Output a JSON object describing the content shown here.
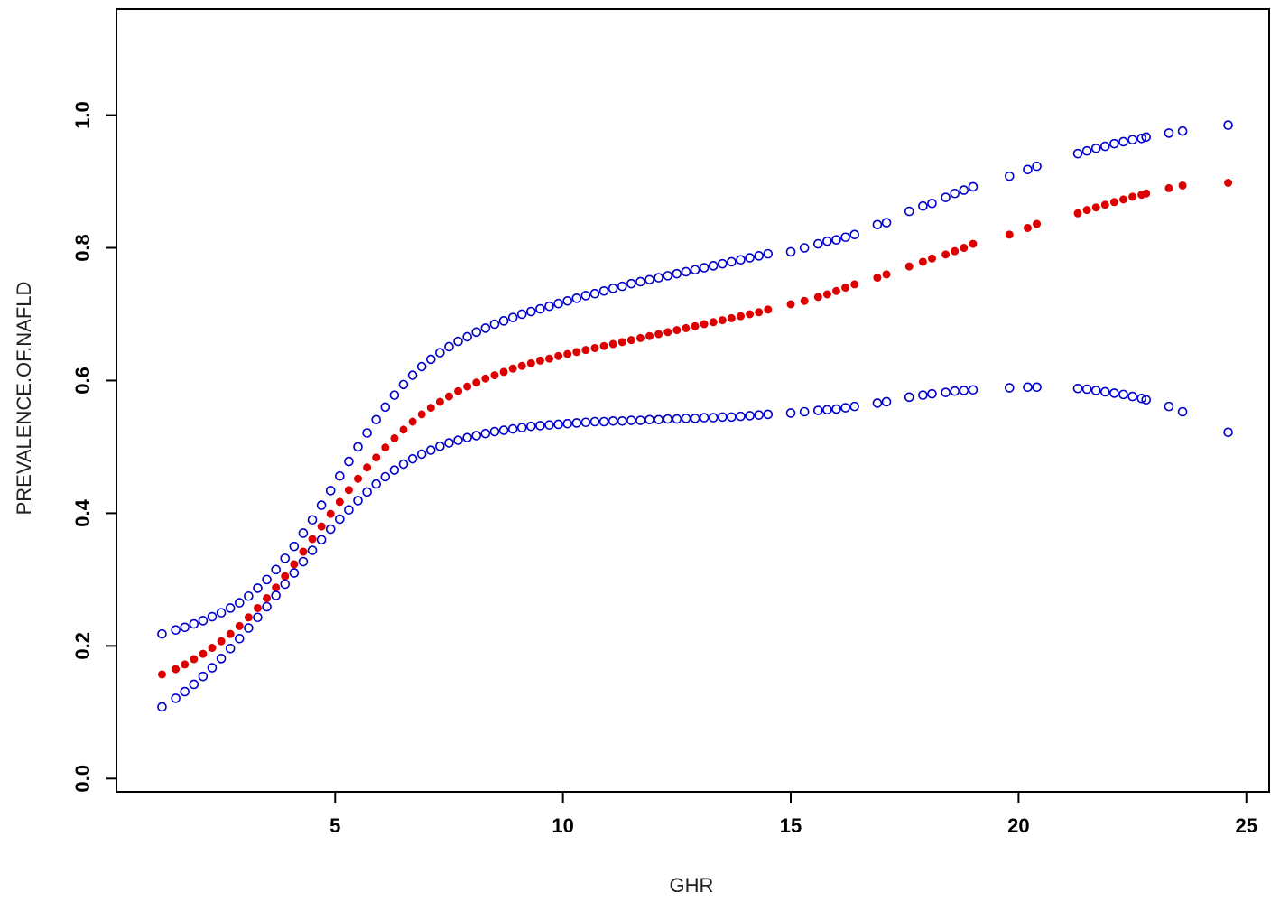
{
  "chart_data": {
    "type": "scatter",
    "title": "",
    "xlabel": "GHR",
    "ylabel": "PREVALENCE.OF.NAFLD",
    "xlim": [
      0.2,
      25.5
    ],
    "ylim": [
      -0.02,
      1.16
    ],
    "x_ticks": [
      5,
      10,
      15,
      20,
      25
    ],
    "x_tick_labels": [
      "5",
      "10",
      "15",
      "20",
      "25"
    ],
    "y_ticks": [
      0.0,
      0.2,
      0.4,
      0.6,
      0.8,
      1.0
    ],
    "y_tick_labels": [
      "0.0",
      "0.2",
      "0.4",
      "0.6",
      "0.8",
      "1.0"
    ],
    "grid": false,
    "legend": "none",
    "series": [
      {
        "role": "upper",
        "marker": "open-circle",
        "color": "#0000cc",
        "x": [
          1.2,
          1.5,
          1.7,
          1.9,
          2.1,
          2.3,
          2.5,
          2.7,
          2.9,
          3.1,
          3.3,
          3.5,
          3.7,
          3.9,
          4.1,
          4.3,
          4.5,
          4.7,
          4.9,
          5.1,
          5.3,
          5.5,
          5.7,
          5.9,
          6.1,
          6.3,
          6.5,
          6.7,
          6.9,
          7.1,
          7.3,
          7.5,
          7.7,
          7.9,
          8.1,
          8.3,
          8.5,
          8.7,
          8.9,
          9.1,
          9.3,
          9.5,
          9.7,
          9.9,
          10.1,
          10.3,
          10.5,
          10.7,
          10.9,
          11.1,
          11.3,
          11.5,
          11.7,
          11.9,
          12.1,
          12.3,
          12.5,
          12.7,
          12.9,
          13.1,
          13.3,
          13.5,
          13.7,
          13.9,
          14.1,
          14.3,
          14.5,
          15.0,
          15.3,
          15.6,
          15.8,
          16.0,
          16.2,
          16.4,
          16.9,
          17.1,
          17.6,
          17.9,
          18.1,
          18.4,
          18.6,
          18.8,
          19.0,
          19.8,
          20.2,
          20.4,
          21.3,
          21.5,
          21.7,
          21.9,
          22.1,
          22.3,
          22.5,
          22.7,
          22.8,
          23.3,
          23.6,
          24.6
        ],
        "y": [
          0.218,
          0.224,
          0.228,
          0.233,
          0.238,
          0.244,
          0.25,
          0.257,
          0.265,
          0.275,
          0.287,
          0.3,
          0.315,
          0.332,
          0.35,
          0.37,
          0.39,
          0.412,
          0.434,
          0.456,
          0.478,
          0.5,
          0.521,
          0.541,
          0.56,
          0.578,
          0.594,
          0.608,
          0.621,
          0.632,
          0.642,
          0.651,
          0.659,
          0.666,
          0.673,
          0.679,
          0.685,
          0.69,
          0.695,
          0.7,
          0.704,
          0.708,
          0.712,
          0.716,
          0.72,
          0.724,
          0.728,
          0.731,
          0.735,
          0.739,
          0.742,
          0.746,
          0.749,
          0.752,
          0.755,
          0.758,
          0.761,
          0.764,
          0.767,
          0.77,
          0.773,
          0.776,
          0.779,
          0.782,
          0.785,
          0.788,
          0.791,
          0.794,
          0.8,
          0.806,
          0.81,
          0.812,
          0.816,
          0.82,
          0.835,
          0.838,
          0.855,
          0.863,
          0.867,
          0.876,
          0.882,
          0.887,
          0.892,
          0.908,
          0.918,
          0.923,
          0.942,
          0.946,
          0.95,
          0.953,
          0.957,
          0.96,
          0.963,
          0.965,
          0.967,
          0.973,
          0.976,
          0.985
        ]
      },
      {
        "role": "fit",
        "marker": "filled-dot",
        "color": "#dd0000",
        "x": [
          1.2,
          1.5,
          1.7,
          1.9,
          2.1,
          2.3,
          2.5,
          2.7,
          2.9,
          3.1,
          3.3,
          3.5,
          3.7,
          3.9,
          4.1,
          4.3,
          4.5,
          4.7,
          4.9,
          5.1,
          5.3,
          5.5,
          5.7,
          5.9,
          6.1,
          6.3,
          6.5,
          6.7,
          6.9,
          7.1,
          7.3,
          7.5,
          7.7,
          7.9,
          8.1,
          8.3,
          8.5,
          8.7,
          8.9,
          9.1,
          9.3,
          9.5,
          9.7,
          9.9,
          10.1,
          10.3,
          10.5,
          10.7,
          10.9,
          11.1,
          11.3,
          11.5,
          11.7,
          11.9,
          12.1,
          12.3,
          12.5,
          12.7,
          12.9,
          13.1,
          13.3,
          13.5,
          13.7,
          13.9,
          14.1,
          14.3,
          14.5,
          15.0,
          15.3,
          15.6,
          15.8,
          16.0,
          16.2,
          16.4,
          16.9,
          17.1,
          17.6,
          17.9,
          18.1,
          18.4,
          18.6,
          18.8,
          19.0,
          19.8,
          20.2,
          20.4,
          21.3,
          21.5,
          21.7,
          21.9,
          22.1,
          22.3,
          22.5,
          22.7,
          22.8,
          23.3,
          23.6,
          24.6
        ],
        "y": [
          0.157,
          0.165,
          0.172,
          0.18,
          0.188,
          0.197,
          0.207,
          0.218,
          0.23,
          0.243,
          0.257,
          0.272,
          0.288,
          0.305,
          0.323,
          0.342,
          0.361,
          0.38,
          0.399,
          0.417,
          0.435,
          0.452,
          0.469,
          0.484,
          0.499,
          0.513,
          0.526,
          0.538,
          0.549,
          0.559,
          0.568,
          0.576,
          0.584,
          0.591,
          0.597,
          0.603,
          0.608,
          0.613,
          0.618,
          0.622,
          0.626,
          0.63,
          0.633,
          0.637,
          0.64,
          0.643,
          0.646,
          0.649,
          0.652,
          0.655,
          0.658,
          0.661,
          0.664,
          0.667,
          0.67,
          0.673,
          0.676,
          0.679,
          0.682,
          0.685,
          0.688,
          0.691,
          0.694,
          0.697,
          0.7,
          0.703,
          0.707,
          0.715,
          0.72,
          0.726,
          0.73,
          0.735,
          0.74,
          0.745,
          0.755,
          0.76,
          0.772,
          0.779,
          0.784,
          0.79,
          0.795,
          0.8,
          0.806,
          0.82,
          0.83,
          0.836,
          0.852,
          0.857,
          0.861,
          0.865,
          0.869,
          0.873,
          0.877,
          0.88,
          0.882,
          0.89,
          0.894,
          0.898
        ]
      },
      {
        "role": "lower",
        "marker": "open-circle",
        "color": "#0000cc",
        "x": [
          1.2,
          1.5,
          1.7,
          1.9,
          2.1,
          2.3,
          2.5,
          2.7,
          2.9,
          3.1,
          3.3,
          3.5,
          3.7,
          3.9,
          4.1,
          4.3,
          4.5,
          4.7,
          4.9,
          5.1,
          5.3,
          5.5,
          5.7,
          5.9,
          6.1,
          6.3,
          6.5,
          6.7,
          6.9,
          7.1,
          7.3,
          7.5,
          7.7,
          7.9,
          8.1,
          8.3,
          8.5,
          8.7,
          8.9,
          9.1,
          9.3,
          9.5,
          9.7,
          9.9,
          10.1,
          10.3,
          10.5,
          10.7,
          10.9,
          11.1,
          11.3,
          11.5,
          11.7,
          11.9,
          12.1,
          12.3,
          12.5,
          12.7,
          12.9,
          13.1,
          13.3,
          13.5,
          13.7,
          13.9,
          14.1,
          14.3,
          14.5,
          15.0,
          15.3,
          15.6,
          15.8,
          16.0,
          16.2,
          16.4,
          16.9,
          17.1,
          17.6,
          17.9,
          18.1,
          18.4,
          18.6,
          18.8,
          19.0,
          19.8,
          20.2,
          20.4,
          21.3,
          21.5,
          21.7,
          21.9,
          22.1,
          22.3,
          22.5,
          22.7,
          22.8,
          23.3,
          23.6,
          24.6
        ],
        "y": [
          0.108,
          0.121,
          0.131,
          0.142,
          0.154,
          0.167,
          0.181,
          0.196,
          0.211,
          0.227,
          0.243,
          0.259,
          0.276,
          0.293,
          0.31,
          0.327,
          0.344,
          0.36,
          0.376,
          0.391,
          0.405,
          0.419,
          0.432,
          0.444,
          0.455,
          0.465,
          0.474,
          0.482,
          0.489,
          0.495,
          0.501,
          0.506,
          0.51,
          0.514,
          0.517,
          0.52,
          0.523,
          0.525,
          0.527,
          0.529,
          0.531,
          0.532,
          0.533,
          0.534,
          0.535,
          0.536,
          0.537,
          0.538,
          0.538,
          0.539,
          0.539,
          0.54,
          0.54,
          0.541,
          0.541,
          0.542,
          0.542,
          0.543,
          0.543,
          0.544,
          0.544,
          0.545,
          0.545,
          0.546,
          0.547,
          0.548,
          0.549,
          0.551,
          0.553,
          0.555,
          0.556,
          0.557,
          0.559,
          0.561,
          0.566,
          0.568,
          0.575,
          0.578,
          0.58,
          0.582,
          0.584,
          0.585,
          0.586,
          0.589,
          0.59,
          0.59,
          0.588,
          0.587,
          0.585,
          0.583,
          0.581,
          0.579,
          0.576,
          0.573,
          0.571,
          0.561,
          0.553,
          0.522
        ]
      }
    ]
  }
}
